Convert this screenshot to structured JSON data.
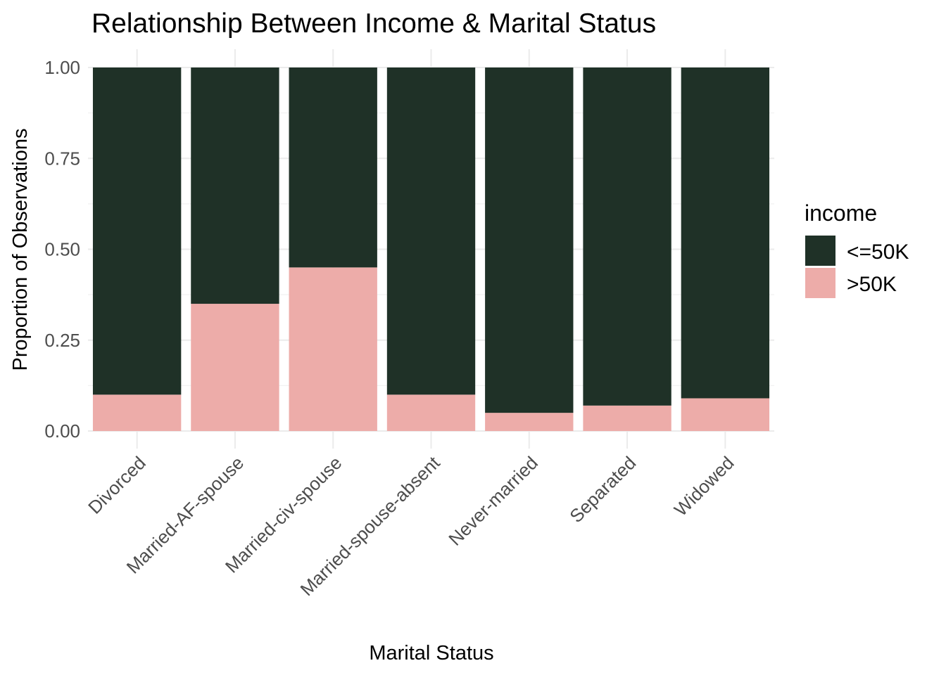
{
  "chart_data": {
    "type": "bar",
    "stacked": true,
    "title": "Relationship Between Income & Marital Status",
    "xlabel": "Marital Status",
    "ylabel": "Proportion of Observations",
    "categories": [
      "Divorced",
      "Married-AF-spouse",
      "Married-civ-spouse",
      "Married-spouse-absent",
      "Never-married",
      "Separated",
      "Widowed"
    ],
    "series": [
      {
        "name": "<=50K",
        "color": "#1f3127",
        "values": [
          0.9,
          0.65,
          0.55,
          0.9,
          0.95,
          0.93,
          0.91
        ]
      },
      {
        "name": ">50K",
        "color": "#edaca9",
        "values": [
          0.1,
          0.35,
          0.45,
          0.1,
          0.05,
          0.07,
          0.09
        ]
      }
    ],
    "ylim": [
      0,
      1
    ],
    "yticks": [
      0,
      0.25,
      0.5,
      0.75,
      1
    ],
    "ytick_labels": [
      "0.00",
      "0.25",
      "0.50",
      "0.75",
      "1.00"
    ],
    "legend": {
      "title": "income",
      "position": "right"
    },
    "grid": true
  }
}
